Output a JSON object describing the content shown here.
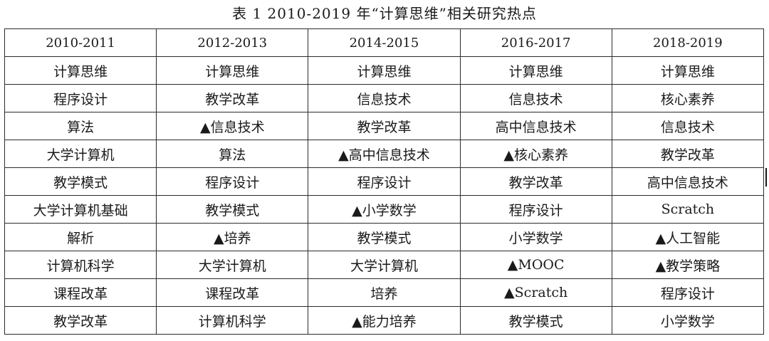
{
  "caption": "表 1 2010-2019 年“计算思维”相关研究热点",
  "table": {
    "headers": [
      "2010-2011",
      "2012-2013",
      "2014-2015",
      "2016-2017",
      "2018-2019"
    ],
    "rows": [
      [
        "计算思维",
        "计算思维",
        "计算思维",
        "计算思维",
        "计算思维"
      ],
      [
        "程序设计",
        "教学改革",
        "信息技术",
        "信息技术",
        "核心素养"
      ],
      [
        "算法",
        "▲信息技术",
        "教学改革",
        "高中信息技术",
        "信息技术"
      ],
      [
        "大学计算机",
        "算法",
        "▲高中信息技术",
        "▲核心素养",
        "教学改革"
      ],
      [
        "教学模式",
        "程序设计",
        "程序设计",
        "教学改革",
        "高中信息技术"
      ],
      [
        "大学计算机基础",
        "教学模式",
        "▲小学数学",
        "程序设计",
        "Scratch"
      ],
      [
        "解析",
        "▲培养",
        "教学模式",
        "小学数学",
        "▲人工智能"
      ],
      [
        "计算机科学",
        "大学计算机",
        "大学计算机",
        "▲MOOC",
        "▲教学策略"
      ],
      [
        "课程改革",
        "课程改革",
        "培养",
        "▲Scratch",
        "程序设计"
      ],
      [
        "教学改革",
        "计算机科学",
        "▲能力培养",
        "教学模式",
        "小学数学"
      ]
    ]
  }
}
